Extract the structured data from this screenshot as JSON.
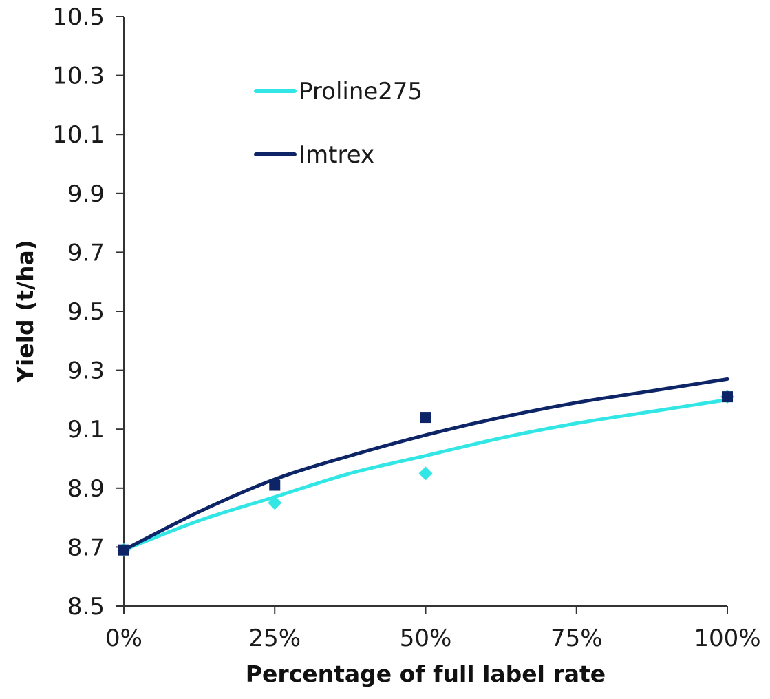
{
  "chart_data": {
    "type": "scatter",
    "title": "",
    "xlabel": "Percentage of full label rate",
    "ylabel": "Yield (t/ha)",
    "x_ticks": [
      "0%",
      "25%",
      "50%",
      "75%",
      "100%"
    ],
    "x_tick_values": [
      0,
      25,
      50,
      75,
      100
    ],
    "xlim": [
      0,
      100
    ],
    "y_ticks": [
      "8.5",
      "8.7",
      "8.9",
      "9.1",
      "9.3",
      "9.5",
      "9.7",
      "9.9",
      "10.1",
      "10.3",
      "10.5"
    ],
    "y_tick_values": [
      8.5,
      8.7,
      8.9,
      9.1,
      9.3,
      9.5,
      9.7,
      9.9,
      10.1,
      10.3,
      10.5
    ],
    "ylim": [
      8.5,
      10.5
    ],
    "grid": false,
    "legend_position": "top-left",
    "series": [
      {
        "name": "Proline275",
        "color": "#33e6e6",
        "marker": "diamond",
        "x": [
          0,
          25,
          50,
          100
        ],
        "y": [
          8.69,
          8.85,
          8.95,
          9.21
        ],
        "trend_x": [
          0,
          12.5,
          25,
          37.5,
          50,
          62.5,
          75,
          87.5,
          100
        ],
        "trend_y": [
          8.69,
          8.79,
          8.87,
          8.95,
          9.01,
          9.07,
          9.12,
          9.16,
          9.2
        ]
      },
      {
        "name": "Imtrex",
        "color": "#0d2466",
        "marker": "square",
        "x": [
          0,
          25,
          50,
          100
        ],
        "y": [
          8.69,
          8.91,
          9.14,
          9.21
        ],
        "trend_x": [
          0,
          12.5,
          25,
          37.5,
          50,
          62.5,
          75,
          87.5,
          100
        ],
        "trend_y": [
          8.69,
          8.82,
          8.93,
          9.01,
          9.08,
          9.14,
          9.19,
          9.23,
          9.27
        ]
      }
    ]
  }
}
